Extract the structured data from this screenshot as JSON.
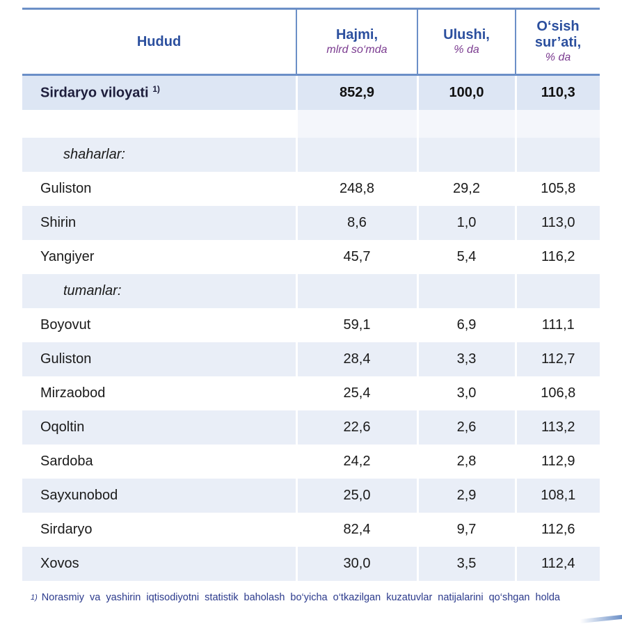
{
  "header": {
    "col1": "Hudud",
    "col2_title": "Hajmi,",
    "col2_unit": "mlrd so‘mda",
    "col3_title": "Ulushi,",
    "col3_unit": "% da",
    "col4_title_line1": "O‘sish",
    "col4_title_line2": "sur’ati,",
    "col4_unit": "% da"
  },
  "total": {
    "name": "Sirdaryo viloyati",
    "note_mark": "1)",
    "hajmi": "852,9",
    "ulushi": "100,0",
    "osish": "110,3"
  },
  "sections": {
    "cities": "shaharlar:",
    "districts": "tumanlar:"
  },
  "rows": [
    {
      "name": "Guliston",
      "hajmi": "248,8",
      "ulushi": "29,2",
      "osish": "105,8"
    },
    {
      "name": "Shirin",
      "hajmi": "8,6",
      "ulushi": "1,0",
      "osish": "113,0"
    },
    {
      "name": "Yangiyer",
      "hajmi": "45,7",
      "ulushi": "5,4",
      "osish": "116,2"
    },
    {
      "name": "Boyovut",
      "hajmi": "59,1",
      "ulushi": "6,9",
      "osish": "111,1"
    },
    {
      "name": "Guliston",
      "hajmi": "28,4",
      "ulushi": "3,3",
      "osish": "112,7"
    },
    {
      "name": "Mirzaobod",
      "hajmi": "25,4",
      "ulushi": "3,0",
      "osish": "106,8"
    },
    {
      "name": "Oqoltin",
      "hajmi": "22,6",
      "ulushi": "2,6",
      "osish": "113,2"
    },
    {
      "name": "Sardoba",
      "hajmi": "24,2",
      "ulushi": "2,8",
      "osish": "112,9"
    },
    {
      "name": "Sayxunobod",
      "hajmi": "25,0",
      "ulushi": "2,9",
      "osish": "108,1"
    },
    {
      "name": "Sirdaryo",
      "hajmi": "82,4",
      "ulushi": "9,7",
      "osish": "112,6"
    },
    {
      "name": "Xovos",
      "hajmi": "30,0",
      "ulushi": "3,5",
      "osish": "112,4"
    }
  ],
  "footnote": {
    "mark": "1)",
    "text": "Norasmiy va yashirin iqtisodiyotni statistik baholash bo‘yicha o‘tkazilgan kuzatuvlar natijalarini qo‘shgan holda"
  },
  "colors": {
    "header_text": "#2b4f9e",
    "unit_text": "#7a3a8f",
    "rule": "#6b8fc7",
    "total_bg": "#dde6f4",
    "shade_bg": "#e9eef7"
  }
}
